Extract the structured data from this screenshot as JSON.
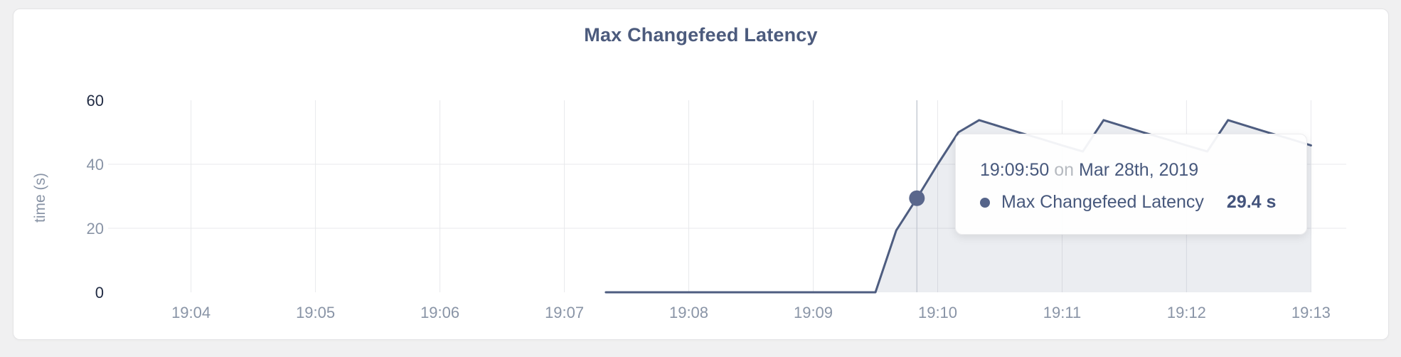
{
  "card": {
    "background": "#ffffff"
  },
  "chart_data": {
    "type": "area",
    "title": "Max Changefeed Latency",
    "ylabel": "time (s)",
    "x_domain": [
      "19:03:20",
      "19:13:17"
    ],
    "y_domain": [
      0,
      60
    ],
    "grid": "partial",
    "legend_position": "none",
    "x_ticks": [
      {
        "time": "19:04:00",
        "label": "19:04"
      },
      {
        "time": "19:05:00",
        "label": "19:05"
      },
      {
        "time": "19:06:00",
        "label": "19:06"
      },
      {
        "time": "19:07:00",
        "label": "19:07"
      },
      {
        "time": "19:08:00",
        "label": "19:08"
      },
      {
        "time": "19:09:00",
        "label": "19:09"
      },
      {
        "time": "19:10:00",
        "label": "19:10"
      },
      {
        "time": "19:11:00",
        "label": "19:11"
      },
      {
        "time": "19:12:00",
        "label": "19:12"
      },
      {
        "time": "19:13:00",
        "label": "19:13"
      }
    ],
    "y_ticks": [
      {
        "value": 0,
        "label": "0",
        "grid": false,
        "emphasis": true
      },
      {
        "value": 20,
        "label": "20",
        "grid": true,
        "emphasis": false
      },
      {
        "value": 40,
        "label": "40",
        "grid": true,
        "emphasis": false
      },
      {
        "value": 60,
        "label": "60",
        "grid": false,
        "emphasis": true
      }
    ],
    "series": [
      {
        "name": "Max Changefeed Latency",
        "color": "#4e5d80",
        "points": [
          [
            "19:07:20",
            0
          ],
          [
            "19:09:30",
            0
          ],
          [
            "19:09:40",
            19.3
          ],
          [
            "19:09:50",
            29.4
          ],
          [
            "19:10:00",
            40.0
          ],
          [
            "19:10:10",
            50.0
          ],
          [
            "19:10:20",
            53.8
          ],
          [
            "19:10:30",
            51.8
          ],
          [
            "19:10:40",
            49.8
          ],
          [
            "19:10:50",
            47.9
          ],
          [
            "19:11:00",
            45.9
          ],
          [
            "19:11:10",
            44.0
          ],
          [
            "19:11:20",
            53.8
          ],
          [
            "19:11:30",
            51.8
          ],
          [
            "19:11:40",
            49.8
          ],
          [
            "19:11:50",
            47.9
          ],
          [
            "19:12:00",
            45.9
          ],
          [
            "19:12:10",
            44.0
          ],
          [
            "19:12:20",
            53.8
          ],
          [
            "19:12:30",
            51.8
          ],
          [
            "19:12:40",
            49.8
          ],
          [
            "19:12:50",
            47.9
          ],
          [
            "19:13:00",
            45.9
          ]
        ]
      }
    ],
    "hover": {
      "time": "19:09:50",
      "value": 29.4
    }
  },
  "tooltip": {
    "time": "19:09:50",
    "connector": "on",
    "date": "Mar 28th, 2019",
    "series": "Max Changefeed Latency",
    "value": "29.4 s"
  },
  "colors": {
    "accent_line": "#4e5d80",
    "hover_dot": "#5a678c",
    "gridline": "#e8e9ec",
    "tick_text": "#8994a6",
    "tick_text_dark": "#222c44",
    "title_text": "#4c5b7d",
    "tooltip_text": "#47587c"
  }
}
